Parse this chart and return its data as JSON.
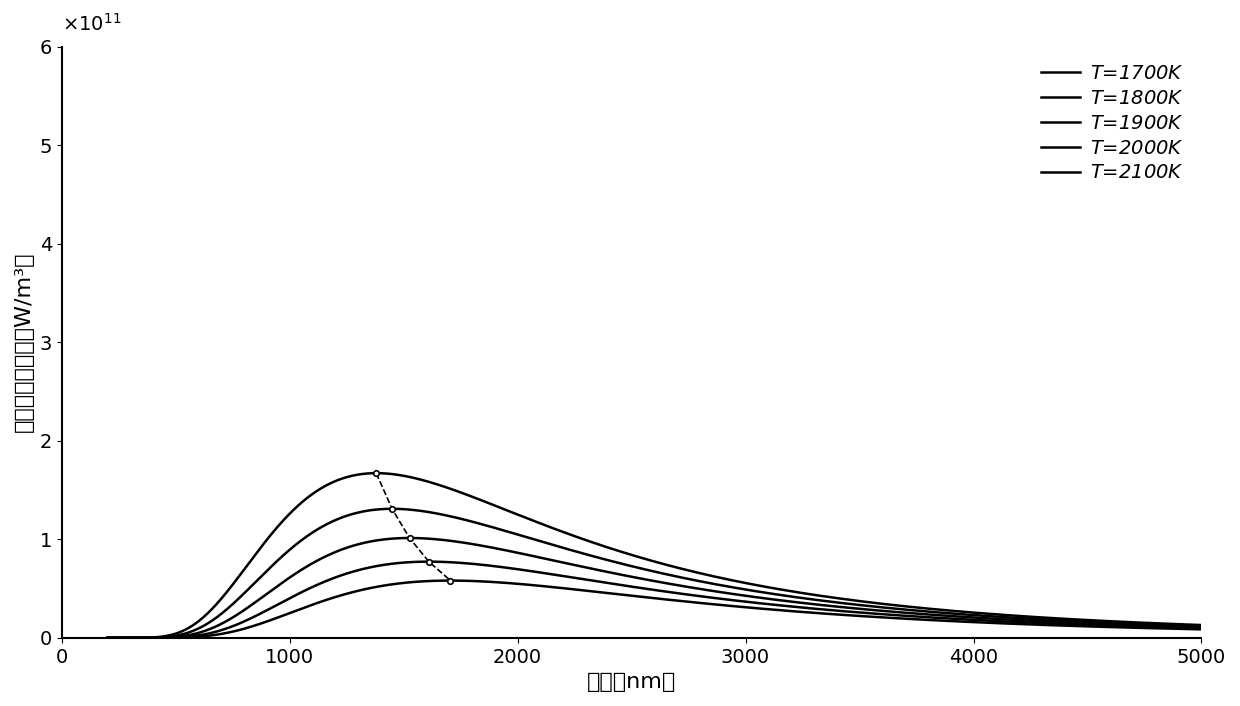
{
  "temperatures": [
    2100,
    2000,
    1900,
    1800,
    1700
  ],
  "lambda_min": 200,
  "lambda_max": 5000,
  "ylim": [
    0,
    600000000000.0
  ],
  "xlim": [
    0,
    5000
  ],
  "xticks": [
    0,
    1000,
    2000,
    3000,
    4000,
    5000
  ],
  "yticks": [
    0,
    100000000000.0,
    200000000000.0,
    300000000000.0,
    400000000000.0,
    500000000000.0,
    600000000000.0
  ],
  "xlabel": "波长（nm）",
  "ylabel": "黑体光谱辐射度（W/m³）",
  "legend_labels": [
    "T=1700K",
    "T=1800K",
    "T=1900K",
    "T=2000K",
    "T=2100K"
  ],
  "line_color": "#000000",
  "line_widths": [
    1.8,
    1.8,
    1.8,
    1.8,
    1.8
  ],
  "dashed_line_color": "#000000",
  "background_color": "#ffffff",
  "title_fontsize": 14,
  "label_fontsize": 16,
  "tick_fontsize": 14,
  "legend_fontsize": 14
}
